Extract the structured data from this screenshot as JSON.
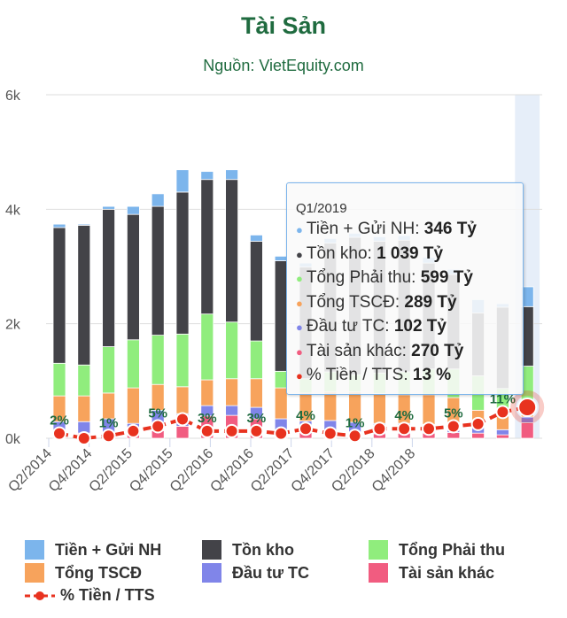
{
  "chart_data": {
    "type": "bar",
    "stacked": true,
    "title": "Tài Sản",
    "subtitle": "Nguồn: VietEquity.com",
    "categories": [
      "Q2/2014",
      "Q3/2014",
      "Q4/2014",
      "Q1/2015",
      "Q2/2015",
      "Q3/2015",
      "Q4/2015",
      "Q1/2016",
      "Q2/2016",
      "Q3/2016",
      "Q4/2016",
      "Q1/2017",
      "Q2/2017",
      "Q3/2017",
      "Q4/2017",
      "Q1/2018",
      "Q2/2018",
      "Q3/2018",
      "Q4/2018",
      "Q1/2019"
    ],
    "x_tick_labels": [
      "Q2/2014",
      "Q4/2014",
      "Q2/2015",
      "Q4/2015",
      "Q2/2016",
      "Q4/2016",
      "Q2/2017",
      "Q4/2017",
      "Q2/2018",
      "Q4/2018"
    ],
    "y_tick_labels": [
      "0k",
      "2k",
      "4k",
      "6k"
    ],
    "ylim": [
      0,
      6000
    ],
    "y2lim": [
      0,
      144
    ],
    "grid": true,
    "legend_placement": "bottom",
    "series": [
      {
        "name": "Tài sản khác",
        "color": "#f15c80",
        "values": [
          80,
          90,
          90,
          80,
          130,
          210,
          390,
          400,
          340,
          140,
          100,
          60,
          80,
          80,
          90,
          90,
          100,
          90,
          60,
          270
        ]
      },
      {
        "name": "Đầu tư TC",
        "color": "#8085e9",
        "values": [
          210,
          200,
          250,
          180,
          360,
          220,
          180,
          170,
          200,
          200,
          200,
          250,
          200,
          180,
          170,
          150,
          130,
          120,
          90,
          102
        ]
      },
      {
        "name": "Tổng TSCĐ",
        "color": "#f7a35c",
        "values": [
          450,
          450,
          450,
          620,
          450,
          470,
          450,
          470,
          500,
          540,
          490,
          500,
          530,
          520,
          500,
          520,
          480,
          280,
          280,
          289
        ]
      },
      {
        "name": "Tổng Phải thu",
        "color": "#90ed7d",
        "values": [
          570,
          540,
          810,
          840,
          860,
          920,
          1150,
          990,
          660,
          290,
          250,
          350,
          300,
          360,
          400,
          450,
          500,
          600,
          440,
          599
        ]
      },
      {
        "name": "Tồn kho",
        "color": "#434348",
        "values": [
          2370,
          2440,
          2400,
          2190,
          2250,
          2480,
          2350,
          2490,
          1740,
          1930,
          1950,
          2250,
          2400,
          2300,
          2300,
          1850,
          1650,
          1100,
          1420,
          1039
        ]
      },
      {
        "name": "Tiền + Gửi NH",
        "color": "#7cb5ec",
        "values": [
          60,
          20,
          50,
          140,
          220,
          390,
          140,
          170,
          110,
          80,
          70,
          80,
          70,
          80,
          80,
          100,
          90,
          230,
          60,
          346
        ]
      }
    ],
    "line_series": {
      "name": "% Tiền / TTS",
      "color": "#e8321f",
      "values": [
        2,
        0,
        1,
        3,
        5,
        8,
        3,
        3,
        3,
        2,
        4,
        2,
        1,
        4,
        4,
        4,
        5,
        6,
        11,
        13
      ],
      "labels": [
        "2%",
        "",
        "1%",
        "",
        "5%",
        "",
        "3%",
        "",
        "3%",
        "",
        "4%",
        "",
        "1%",
        "",
        "4%",
        "",
        "5%",
        "",
        "11%",
        ""
      ]
    },
    "highlighted_category": "Q1/2019"
  },
  "tooltip": {
    "header": "Q1/2019",
    "rows": [
      {
        "label": "Tiền + Gửi NH: ",
        "value": "346 Tỷ",
        "color": "#7cb5ec"
      },
      {
        "label": "Tồn kho: ",
        "value": "1 039 Tỷ",
        "color": "#434348"
      },
      {
        "label": "Tổng Phải thu: ",
        "value": "599 Tỷ",
        "color": "#90ed7d"
      },
      {
        "label": "Tổng TSCĐ: ",
        "value": "289 Tỷ",
        "color": "#f7a35c"
      },
      {
        "label": "Đầu tư TC: ",
        "value": "102 Tỷ",
        "color": "#8085e9"
      },
      {
        "label": "Tài sản khác: ",
        "value": "270 Tỷ",
        "color": "#f15c80"
      },
      {
        "label": "% Tiền / TTS: ",
        "value": "13 %",
        "color": "#e8321f"
      }
    ]
  },
  "legend": {
    "items": [
      {
        "label": "Tiền + Gửi NH",
        "color": "#7cb5ec"
      },
      {
        "label": "Tồn kho",
        "color": "#434348"
      },
      {
        "label": "Tổng Phải thu",
        "color": "#90ed7d"
      },
      {
        "label": "Tổng TSCĐ",
        "color": "#f7a35c"
      },
      {
        "label": "Đầu tư TC",
        "color": "#8085e9"
      },
      {
        "label": "Tài sản khác",
        "color": "#f15c80"
      },
      {
        "label": "% Tiền / TTS",
        "color": "#e8321f"
      }
    ]
  }
}
